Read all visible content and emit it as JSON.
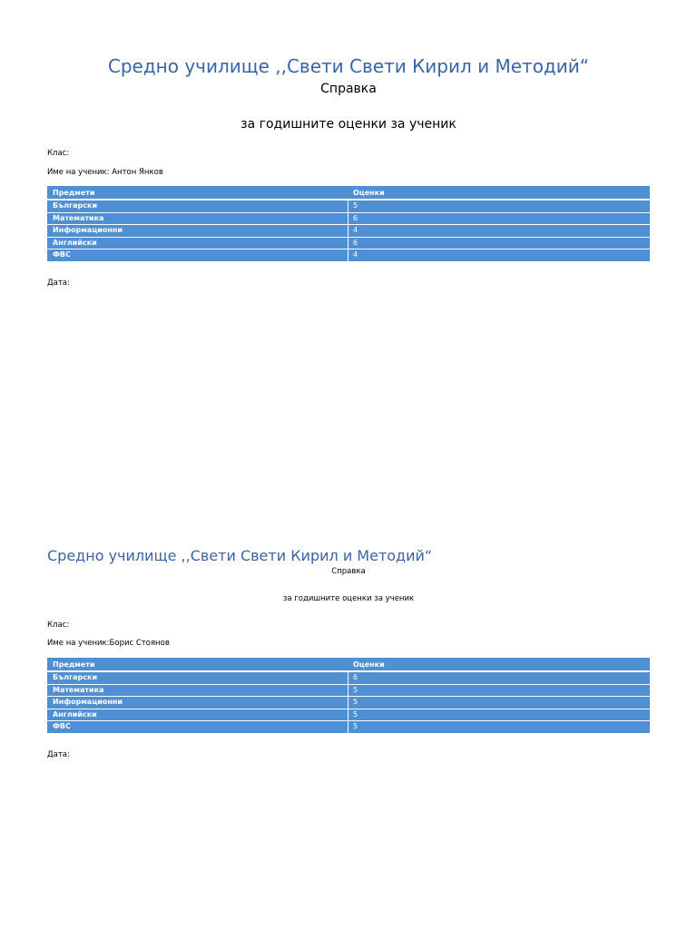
{
  "documents": [
    {
      "title": "Средно училище ,,Свети Свети Кирил и Методий“",
      "subtitle": "Справка",
      "heading": "за годишните оценки за ученик",
      "class_label": "Клас:",
      "student_label": "Име на ученик: Антон Янков",
      "table": {
        "header": [
          "Предмети",
          "Оценки"
        ],
        "rows": [
          [
            "Български",
            5
          ],
          [
            "Математика",
            6
          ],
          [
            "Информационни",
            4
          ],
          [
            "Английски",
            6
          ],
          [
            "ФВС",
            4
          ]
        ]
      },
      "date_label": "Дата:"
    },
    {
      "title": "Средно училище ,,Свети Свети Кирил и Методий“",
      "subtitle": "Справка",
      "heading": "за годишните оценки за ученик",
      "class_label": "Клас:",
      "student_label": "Име на ученик:Борис Стоянов",
      "table": {
        "header": [
          "Предмети",
          "Оценки"
        ],
        "rows": [
          [
            "Български",
            6
          ],
          [
            "Математика",
            5
          ],
          [
            "Информационни",
            5
          ],
          [
            "Английски",
            5
          ],
          [
            "ФВС",
            5
          ]
        ]
      },
      "date_label": "Дата:"
    }
  ]
}
